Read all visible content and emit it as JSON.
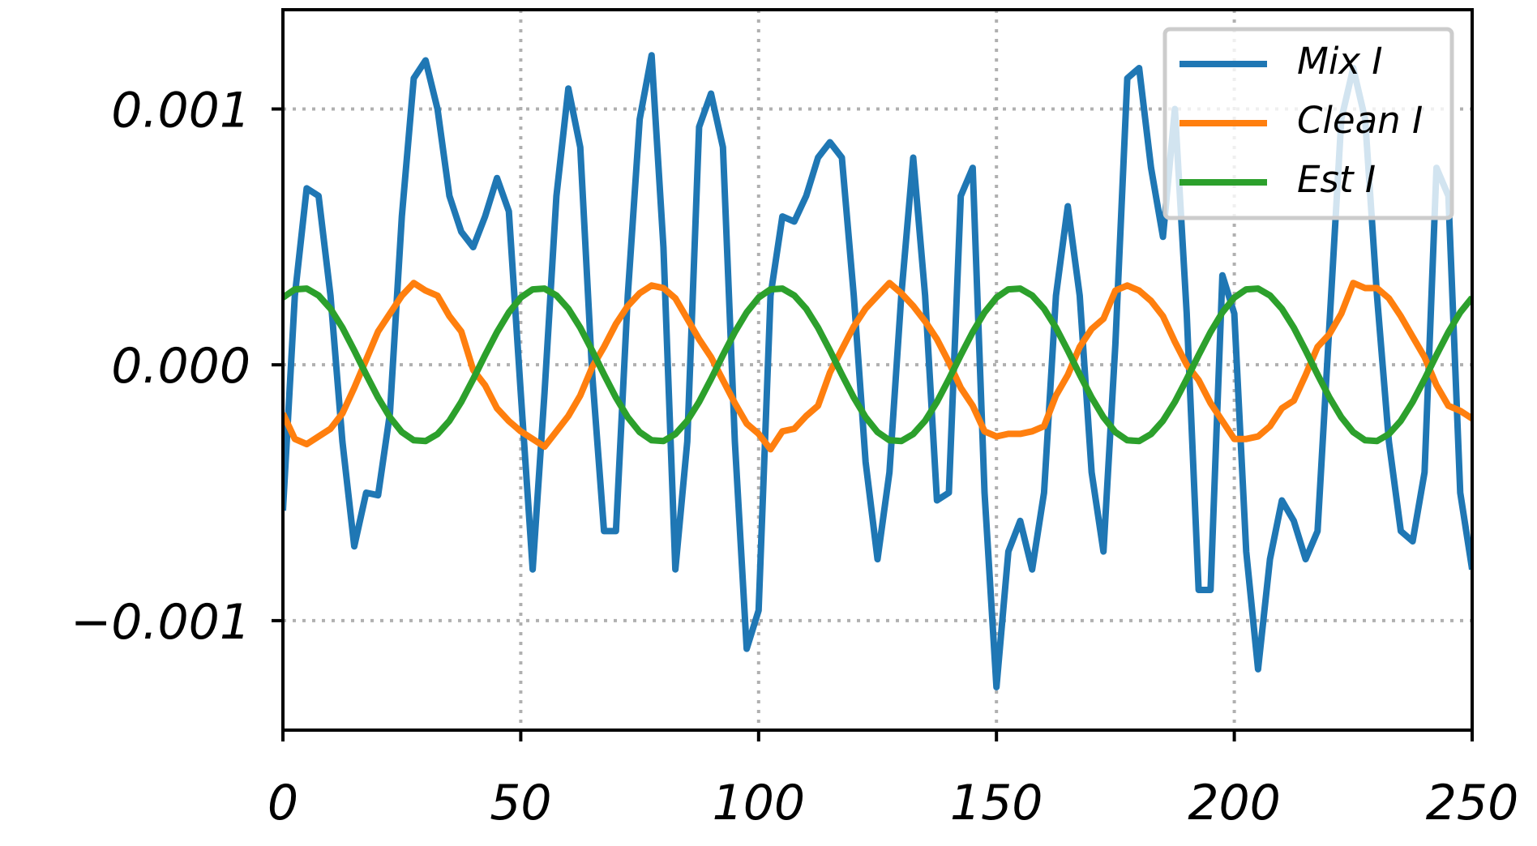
{
  "chart_data": {
    "type": "line",
    "x": [
      0,
      2.5,
      5,
      7.5,
      10,
      12.5,
      15,
      17.5,
      20,
      22.5,
      25,
      27.5,
      30,
      32.5,
      35,
      37.5,
      40,
      42.5,
      45,
      47.5,
      50,
      52.5,
      55,
      57.5,
      60,
      62.5,
      65,
      67.5,
      70,
      72.5,
      75,
      77.5,
      80,
      82.5,
      85,
      87.5,
      90,
      92.5,
      95,
      97.5,
      100,
      102.5,
      105,
      107.5,
      110,
      112.5,
      115,
      117.5,
      120,
      122.5,
      125,
      127.5,
      130,
      132.5,
      135,
      137.5,
      140,
      142.5,
      145,
      147.5,
      150,
      152.5,
      155,
      157.5,
      160,
      162.5,
      165,
      167.5,
      170,
      172.5,
      175,
      177.5,
      180,
      182.5,
      185,
      187.5,
      190,
      192.5,
      195,
      197.5,
      200,
      202.5,
      205,
      207.5,
      210,
      212.5,
      215,
      217.5,
      220,
      222.5,
      225,
      227.5,
      230,
      232.5,
      235,
      237.5,
      240,
      242.5,
      245,
      247.5,
      250
    ],
    "series": [
      {
        "name": "Mix I",
        "color": "#1f77b4",
        "values": [
          -0.00057,
          0.00027,
          0.00069,
          0.00066,
          0.00027,
          -0.0003,
          -0.00071,
          -0.0005,
          -0.00051,
          -0.00019,
          0.00058,
          0.00112,
          0.00119,
          0.001,
          0.00066,
          0.00052,
          0.00046,
          0.00058,
          0.00073,
          0.0006,
          -0.00011,
          -0.0008,
          -0.00011,
          0.00066,
          0.00108,
          0.00085,
          -3e-05,
          -0.00065,
          -0.00065,
          0.00027,
          0.00096,
          0.00121,
          0.00046,
          -0.0008,
          -0.0003,
          0.00093,
          0.00106,
          0.00085,
          -0.0003,
          -0.00111,
          -0.00096,
          0.00027,
          0.00058,
          0.00056,
          0.00066,
          0.00081,
          0.00087,
          0.00081,
          0.00027,
          -0.00038,
          -0.00076,
          -0.00042,
          0.00027,
          0.00081,
          0.00027,
          -0.00053,
          -0.0005,
          0.00066,
          0.00077,
          -0.0005,
          -0.00126,
          -0.00073,
          -0.00061,
          -0.0008,
          -0.0005,
          0.00027,
          0.00062,
          0.00027,
          -0.00042,
          -0.00073,
          8e-05,
          0.00112,
          0.00116,
          0.00077,
          0.0005,
          0.001,
          0.0002,
          -0.00088,
          -0.00088,
          0.00035,
          0.0002,
          -0.00073,
          -0.00119,
          -0.00076,
          -0.00053,
          -0.00061,
          -0.00076,
          -0.00065,
          0.00016,
          0.00096,
          0.00116,
          0.00096,
          0.00027,
          -0.0003,
          -0.00065,
          -0.00069,
          -0.00042,
          0.00077,
          0.00066,
          -0.0005,
          -0.0008
        ]
      },
      {
        "name": "Clean I",
        "color": "#ff7f0e",
        "values": [
          -0.00019,
          -0.00029,
          -0.00031,
          -0.00028,
          -0.00025,
          -0.00019,
          -9e-05,
          2e-05,
          0.00013,
          0.0002,
          0.00027,
          0.00032,
          0.00029,
          0.00027,
          0.00019,
          0.00013,
          -2e-05,
          -8e-05,
          -0.00017,
          -0.00022,
          -0.00026,
          -0.00029,
          -0.00032,
          -0.00026,
          -0.0002,
          -0.00012,
          -1e-05,
          7e-05,
          0.00016,
          0.00023,
          0.00028,
          0.00031,
          0.0003,
          0.00026,
          0.00018,
          0.0001,
          3e-05,
          -6e-05,
          -0.00015,
          -0.00023,
          -0.00027,
          -0.00033,
          -0.00026,
          -0.00025,
          -0.0002,
          -0.00016,
          -3e-05,
          6e-05,
          0.00015,
          0.00022,
          0.00027,
          0.00032,
          0.00028,
          0.00023,
          0.00017,
          0.0001,
          1e-05,
          -9e-05,
          -0.00016,
          -0.00026,
          -0.00028,
          -0.00027,
          -0.00027,
          -0.00026,
          -0.00024,
          -0.00012,
          -4e-05,
          7e-05,
          0.00014,
          0.00018,
          0.00029,
          0.00031,
          0.00029,
          0.00025,
          0.00019,
          9e-05,
          0,
          -6e-05,
          -0.00015,
          -0.00022,
          -0.00029,
          -0.00029,
          -0.00028,
          -0.00024,
          -0.00017,
          -0.00014,
          -4e-05,
          7e-05,
          0.00012,
          0.0002,
          0.00032,
          0.0003,
          0.0003,
          0.00026,
          0.00019,
          0.00011,
          3e-05,
          -8e-05,
          -0.00016,
          -0.00018,
          -0.00021
        ]
      },
      {
        "name": "Est I",
        "color": "#2ca02c",
        "values": [
          0.000263,
          0.000295,
          0.000298,
          0.000271,
          0.000219,
          0.000145,
          5.6e-05,
          -3.8e-05,
          -0.000128,
          -0.000205,
          -0.000263,
          -0.000295,
          -0.000298,
          -0.000271,
          -0.000219,
          -0.000145,
          -5.6e-05,
          3.8e-05,
          0.000128,
          0.000205,
          0.000263,
          0.000295,
          0.000298,
          0.000271,
          0.000219,
          0.000145,
          5.6e-05,
          -3.8e-05,
          -0.000128,
          -0.000205,
          -0.000263,
          -0.000295,
          -0.000298,
          -0.000271,
          -0.000219,
          -0.000145,
          -5.6e-05,
          3.8e-05,
          0.000128,
          0.000205,
          0.000263,
          0.000295,
          0.000298,
          0.000271,
          0.000219,
          0.000145,
          5.6e-05,
          -3.8e-05,
          -0.000128,
          -0.000205,
          -0.000263,
          -0.000295,
          -0.000298,
          -0.000271,
          -0.000219,
          -0.000145,
          -5.6e-05,
          3.8e-05,
          0.000128,
          0.000205,
          0.000263,
          0.000295,
          0.000298,
          0.000271,
          0.000219,
          0.000145,
          5.6e-05,
          -3.8e-05,
          -0.000128,
          -0.000205,
          -0.000263,
          -0.000295,
          -0.000298,
          -0.000271,
          -0.000219,
          -0.000145,
          -5.6e-05,
          3.8e-05,
          0.000128,
          0.000205,
          0.000263,
          0.000295,
          0.000298,
          0.000271,
          0.000219,
          0.000145,
          5.6e-05,
          -3.8e-05,
          -0.000128,
          -0.000205,
          -0.000263,
          -0.000295,
          -0.000298,
          -0.000271,
          -0.000219,
          -0.000145,
          -5.6e-05,
          3.8e-05,
          0.000128,
          0.000205,
          0.000263
        ]
      }
    ],
    "xlim": [
      0,
      250
    ],
    "xticks": [
      0,
      50,
      100,
      150,
      200,
      250
    ],
    "ylim": [
      -0.001428,
      0.001388
    ],
    "yticks": [
      {
        "value": -0.001,
        "label": "−0.001"
      },
      {
        "value": 0,
        "label": "0.000"
      },
      0.001
    ],
    "grid": true,
    "legend": "upper right"
  }
}
